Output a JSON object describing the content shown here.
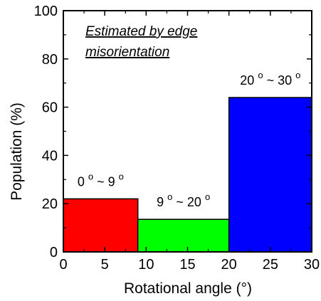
{
  "chart_data": {
    "type": "bar",
    "xlabel": "Rotational angle (°)",
    "ylabel": "Population (%)",
    "xlim": [
      0,
      30
    ],
    "ylim": [
      0,
      100
    ],
    "xticks": [
      0,
      5,
      10,
      15,
      20,
      25,
      30
    ],
    "yticks": [
      0,
      20,
      40,
      60,
      80,
      100
    ],
    "grid": false,
    "annotation": [
      "Estimated by edge",
      "misorientation"
    ],
    "bars": [
      {
        "label": "0° ~ 9°",
        "lo": "0",
        "hi": "9",
        "x_start": 0,
        "x_end": 9,
        "value": 22,
        "color": "#ff0000"
      },
      {
        "label": "9° ~ 20°",
        "lo": "9",
        "hi": "20",
        "x_start": 9,
        "x_end": 20,
        "value": 13.5,
        "color": "#00ff00"
      },
      {
        "label": "20° ~ 30°",
        "lo": "20",
        "hi": "30",
        "x_start": 20,
        "x_end": 30,
        "value": 64,
        "color": "#0000ff"
      }
    ]
  }
}
